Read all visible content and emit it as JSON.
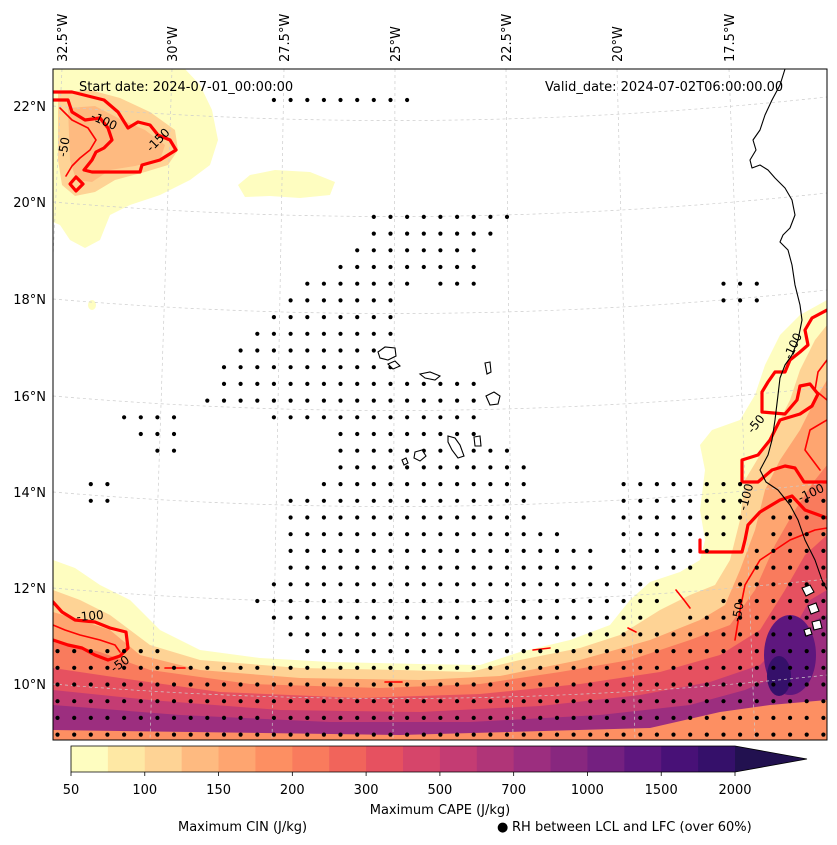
{
  "figure": {
    "start_date": "Start date: 2024-07-01_00:00:00",
    "valid_date": "Valid_date: 2024-07-02T06:00:00.00"
  },
  "map": {
    "lon_labels": [
      "32.5°W",
      "30°W",
      "27.5°W",
      "25°W",
      "22.5°W",
      "20°W",
      "17.5°W"
    ],
    "lat_labels": [
      "22°N",
      "20°N",
      "18°N",
      "16°N",
      "14°N",
      "12°N",
      "10°N"
    ],
    "contour_labels": [
      "-50",
      "-100",
      "-150",
      "-100",
      "-50",
      "-100",
      "-50",
      "-100",
      "-100",
      "-50"
    ],
    "cin_color": "#ff0000",
    "coastline_color": "#000000",
    "stipple_color": "#000000",
    "gridline_color": "#cccccc"
  },
  "colorbar": {
    "label": "Maximum CAPE (J/kg)",
    "tick_labels": [
      "50",
      "100",
      "150",
      "200",
      "300",
      "500",
      "700",
      "1000",
      "1500",
      "2000"
    ],
    "colors": [
      "#fefdc0",
      "#fee8a4",
      "#fed395",
      "#feba80",
      "#fea570",
      "#fd8f62",
      "#f97b5d",
      "#f1645b",
      "#e65160",
      "#d6456a",
      "#c43c73",
      "#b03578",
      "#9c2e7f",
      "#88277f",
      "#742080",
      "#5e177e",
      "#481177",
      "#35106a"
    ],
    "extend_color": "#221150",
    "extend": "max"
  },
  "legend": {
    "cin_label": "Maximum CIN (J/kg)",
    "rh_marker": "●",
    "rh_label": "RH between LCL and LFC (over 60%)"
  }
}
